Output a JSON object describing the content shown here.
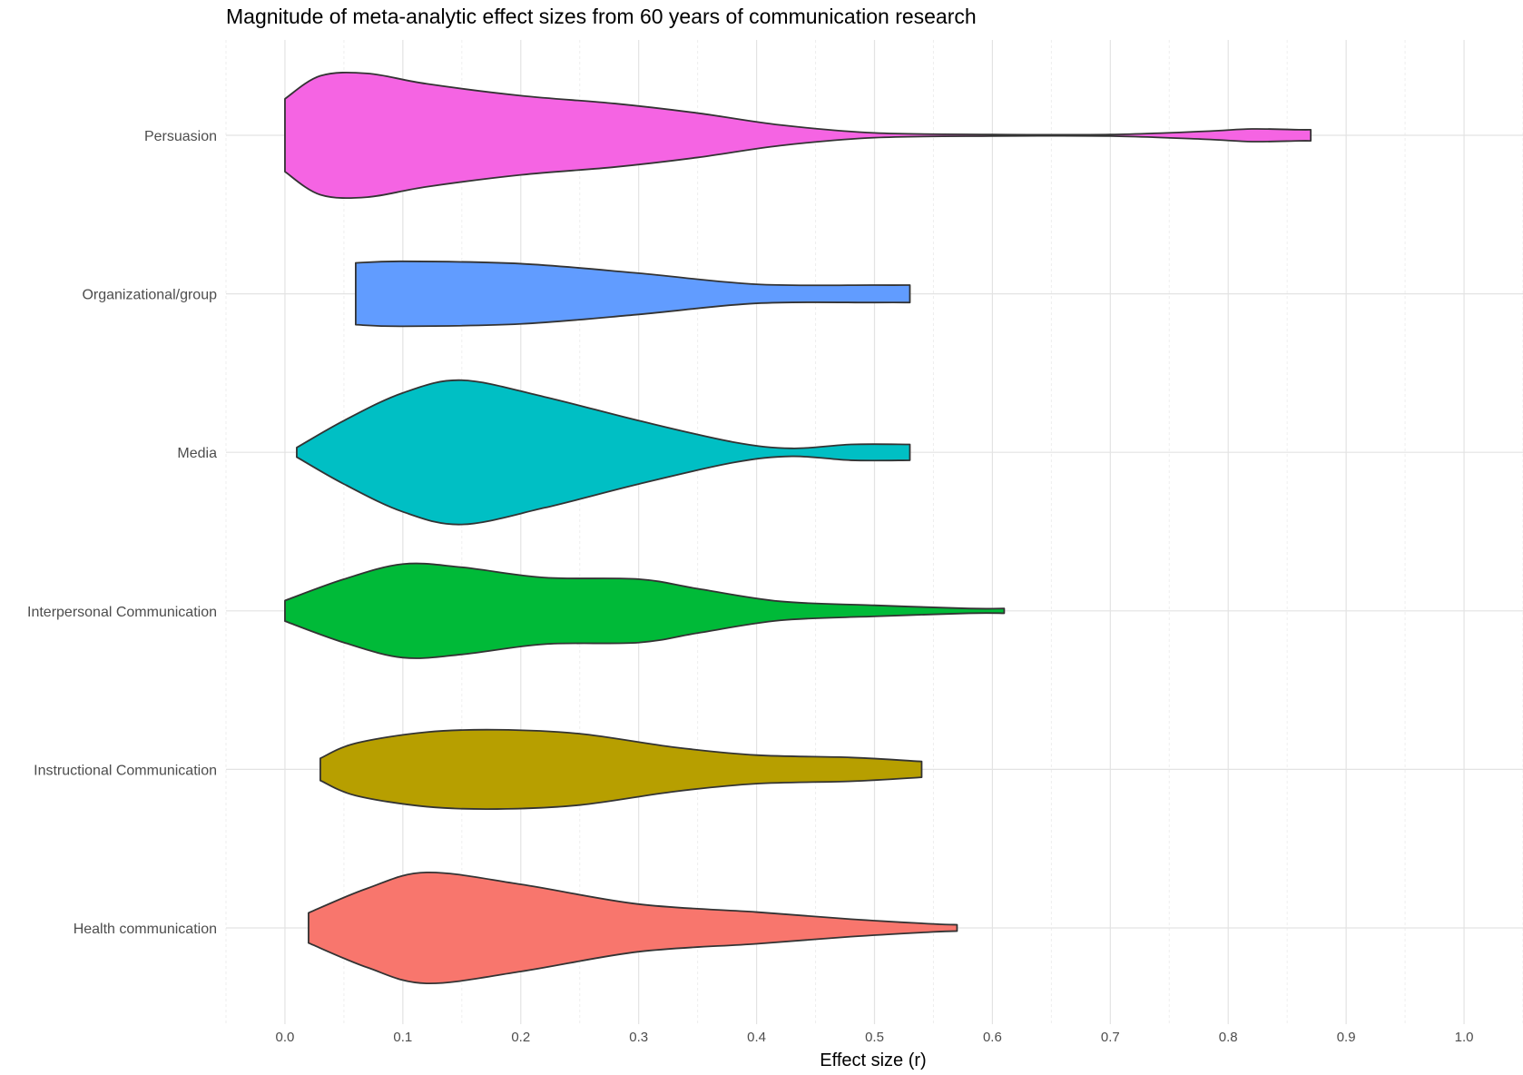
{
  "chart_data": {
    "type": "violin",
    "title": "Magnitude of meta-analytic effect sizes from 60 years of communication research",
    "xlabel": "Effect size (r)",
    "ylabel": "",
    "xlim": [
      -0.05,
      1.05
    ],
    "x_ticks": [
      "0.0",
      "0.1",
      "0.2",
      "0.3",
      "0.4",
      "0.5",
      "0.6",
      "0.7",
      "0.8",
      "0.9",
      "1.0"
    ],
    "grid": true,
    "legend": "none",
    "series": [
      {
        "name": "Persuasion",
        "color": "#F564E3",
        "range": [
          0.0,
          0.87
        ],
        "density": [
          [
            0.0,
            0.46
          ],
          [
            0.03,
            0.75
          ],
          [
            0.07,
            0.78
          ],
          [
            0.12,
            0.65
          ],
          [
            0.2,
            0.5
          ],
          [
            0.28,
            0.4
          ],
          [
            0.35,
            0.28
          ],
          [
            0.42,
            0.13
          ],
          [
            0.5,
            0.03
          ],
          [
            0.6,
            0.01
          ],
          [
            0.7,
            0.01
          ],
          [
            0.78,
            0.05
          ],
          [
            0.82,
            0.08
          ],
          [
            0.86,
            0.07
          ],
          [
            0.87,
            0.07
          ]
        ]
      },
      {
        "name": "Organizational/group",
        "color": "#619CFF",
        "range": [
          0.06,
          0.53
        ],
        "density": [
          [
            0.06,
            0.39
          ],
          [
            0.1,
            0.41
          ],
          [
            0.2,
            0.38
          ],
          [
            0.3,
            0.26
          ],
          [
            0.4,
            0.12
          ],
          [
            0.5,
            0.11
          ],
          [
            0.53,
            0.11
          ]
        ]
      },
      {
        "name": "Media",
        "color": "#00BFC4",
        "range": [
          0.01,
          0.53
        ],
        "density": [
          [
            0.01,
            0.06
          ],
          [
            0.05,
            0.4
          ],
          [
            0.1,
            0.75
          ],
          [
            0.15,
            0.91
          ],
          [
            0.22,
            0.7
          ],
          [
            0.3,
            0.4
          ],
          [
            0.38,
            0.13
          ],
          [
            0.43,
            0.05
          ],
          [
            0.48,
            0.1
          ],
          [
            0.53,
            0.1
          ]
        ]
      },
      {
        "name": "Interpersonal Communication",
        "color": "#00BA38",
        "range": [
          0.0,
          0.61
        ],
        "density": [
          [
            0.0,
            0.13
          ],
          [
            0.05,
            0.4
          ],
          [
            0.1,
            0.59
          ],
          [
            0.15,
            0.55
          ],
          [
            0.22,
            0.42
          ],
          [
            0.3,
            0.4
          ],
          [
            0.35,
            0.28
          ],
          [
            0.42,
            0.12
          ],
          [
            0.5,
            0.07
          ],
          [
            0.58,
            0.03
          ],
          [
            0.61,
            0.03
          ]
        ]
      },
      {
        "name": "Instructional Communication",
        "color": "#B79F00",
        "range": [
          0.03,
          0.54
        ],
        "density": [
          [
            0.03,
            0.14
          ],
          [
            0.06,
            0.33
          ],
          [
            0.12,
            0.47
          ],
          [
            0.18,
            0.5
          ],
          [
            0.25,
            0.45
          ],
          [
            0.33,
            0.28
          ],
          [
            0.4,
            0.18
          ],
          [
            0.48,
            0.15
          ],
          [
            0.54,
            0.1
          ]
        ]
      },
      {
        "name": "Health communication",
        "color": "#F8766D",
        "range": [
          0.02,
          0.57
        ],
        "density": [
          [
            0.02,
            0.19
          ],
          [
            0.07,
            0.5
          ],
          [
            0.12,
            0.7
          ],
          [
            0.2,
            0.55
          ],
          [
            0.3,
            0.3
          ],
          [
            0.4,
            0.2
          ],
          [
            0.48,
            0.11
          ],
          [
            0.55,
            0.05
          ],
          [
            0.57,
            0.04
          ]
        ]
      }
    ]
  }
}
